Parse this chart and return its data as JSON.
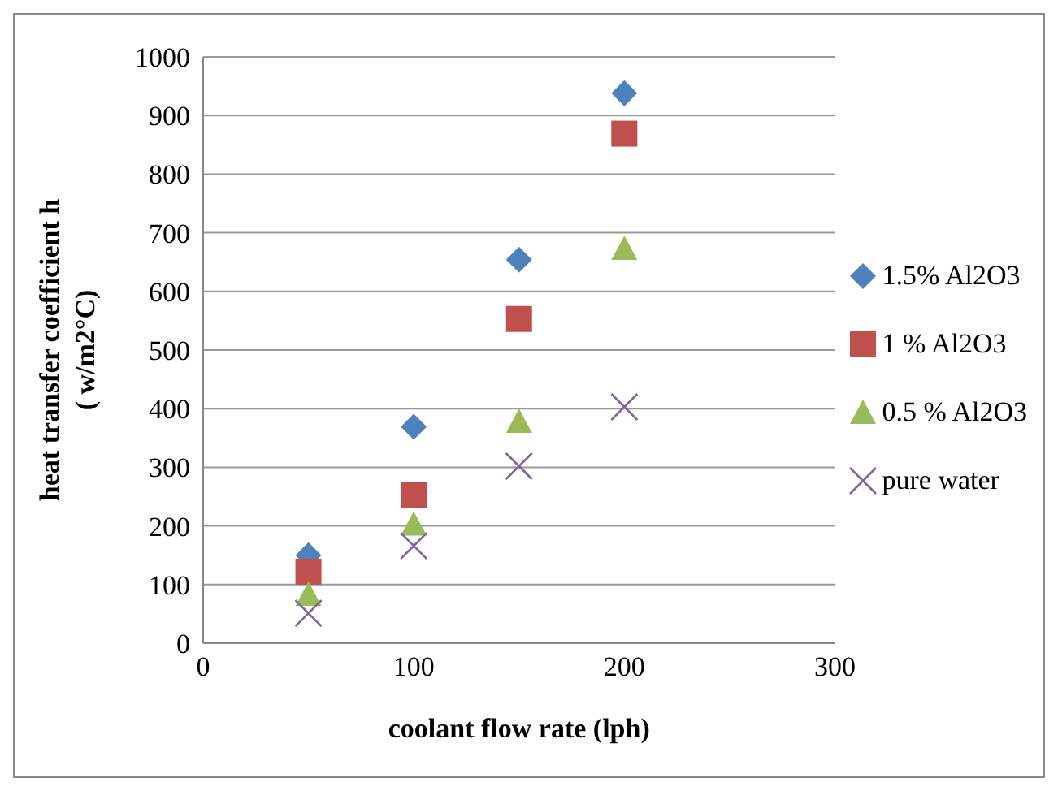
{
  "chart_data": {
    "type": "scatter",
    "xlabel": "coolant flow rate (lph)",
    "ylabel": "heat transfer coefficient h\n( w/m2°C)",
    "x": [
      50,
      100,
      150,
      200
    ],
    "series": [
      {
        "name": "1.5% Al2O3",
        "color": "#4f81bd",
        "marker": "diamond",
        "values": [
          150,
          369,
          654,
          938
        ]
      },
      {
        "name": "1 % Al2O3",
        "color": "#c0504d",
        "marker": "square",
        "values": [
          122,
          253,
          553,
          869
        ]
      },
      {
        "name": "0.5 % Al2O3",
        "color": "#9bbb59",
        "marker": "triangle",
        "values": [
          83,
          203,
          378,
          673
        ]
      },
      {
        "name": "pure water",
        "color": "#8064a2",
        "marker": "cross",
        "values": [
          51,
          166,
          302,
          403
        ]
      }
    ],
    "xlim": [
      0,
      300
    ],
    "xticks": [
      0,
      100,
      200,
      300
    ],
    "ylim": [
      0,
      1000
    ],
    "yticks": [
      0,
      100,
      200,
      300,
      400,
      500,
      600,
      700,
      800,
      900,
      1000
    ],
    "grid": "y",
    "legend": "right"
  }
}
